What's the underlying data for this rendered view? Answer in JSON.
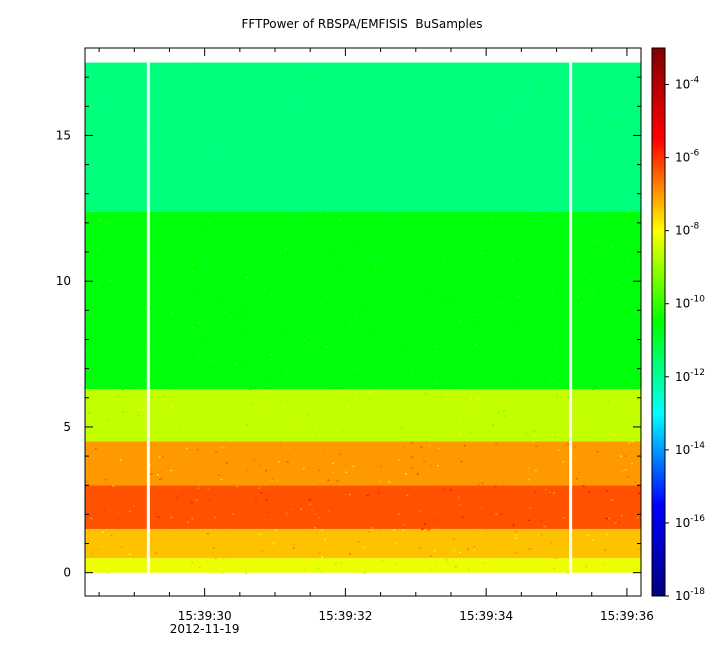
{
  "chart_data": {
    "type": "heatmap",
    "title": "FFTPower of RBSPA/EMFISIS  BuSamples",
    "xlabel": "",
    "ylabel": "",
    "x_axis": {
      "type": "time",
      "date_label": "2012-11-19",
      "range": [
        "15:39:28.3",
        "15:39:36.2"
      ],
      "ticks": [
        "15:39:30",
        "15:39:32",
        "15:39:34",
        "15:39:36"
      ]
    },
    "y_axis": {
      "range": [
        -0.8,
        18.0
      ],
      "ticks": [
        "0",
        "5",
        "10",
        "15"
      ],
      "data_top": 17.5
    },
    "colorbar": {
      "scale": "log",
      "range": [
        1e-18,
        0.001
      ],
      "ticks": [
        {
          "base": "10",
          "exp": "-4"
        },
        {
          "base": "10",
          "exp": "-6"
        },
        {
          "base": "10",
          "exp": "-8"
        },
        {
          "base": "10",
          "exp": "-10"
        },
        {
          "base": "10",
          "exp": "-12"
        },
        {
          "base": "10",
          "exp": "-14"
        },
        {
          "base": "10",
          "exp": "-16"
        },
        {
          "base": "10",
          "exp": "-18"
        }
      ],
      "tick_exponents": [
        -4,
        -6,
        -8,
        -10,
        -12,
        -14,
        -16,
        -18
      ],
      "colormap": [
        "#00007f",
        "#0000ff",
        "#00ffff",
        "#00ff00",
        "#ffff00",
        "#ff0000",
        "#7f0000"
      ]
    },
    "data_gaps": [
      "15:39:29.2",
      "15:39:35.2"
    ],
    "frequency_bands": [
      {
        "y_from": 0.0,
        "y_to": 0.5,
        "log10_power": -8.2
      },
      {
        "y_from": 0.5,
        "y_to": 1.5,
        "log10_power": -7.4
      },
      {
        "y_from": 1.5,
        "y_to": 3.0,
        "log10_power": -6.3
      },
      {
        "y_from": 3.0,
        "y_to": 4.5,
        "log10_power": -7.0
      },
      {
        "y_from": 4.5,
        "y_to": 6.3,
        "log10_power": -8.6
      },
      {
        "y_from": 6.3,
        "y_to": 12.4,
        "log10_power": -10.6
      },
      {
        "y_from": 12.4,
        "y_to": 17.5,
        "log10_power": -11.7
      }
    ]
  }
}
